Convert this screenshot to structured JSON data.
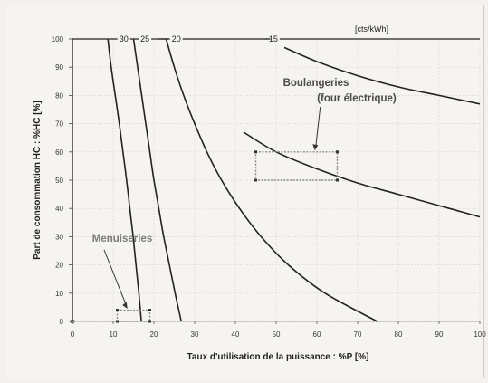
{
  "chart_data": {
    "type": "line",
    "xlabel": "Taux d'utilisation de la puissance : %P [%]",
    "ylabel": "Part de consommation HC : %HC [%]",
    "xlim": [
      0,
      100
    ],
    "ylim": [
      0,
      100
    ],
    "x_ticks": [
      "0",
      "10",
      "20",
      "30",
      "40",
      "50",
      "60",
      "70",
      "80",
      "90",
      "100"
    ],
    "y_ticks": [
      "0",
      "10",
      "20",
      "30",
      "40",
      "50",
      "60",
      "70",
      "80",
      "90",
      "100"
    ],
    "grid": true,
    "unit_label": "[cts/kWh]",
    "series": [
      {
        "name": "30",
        "points": [
          [
            8.7,
            100
          ],
          [
            9.5,
            90
          ],
          [
            10.5,
            80
          ],
          [
            11.5,
            70
          ],
          [
            12.4,
            60
          ],
          [
            13.3,
            50
          ],
          [
            14.1,
            40
          ],
          [
            14.9,
            30
          ],
          [
            15.6,
            20
          ],
          [
            16.3,
            10
          ],
          [
            16.9,
            0
          ]
        ]
      },
      {
        "name": "25",
        "points": [
          [
            15,
            100
          ],
          [
            16,
            90
          ],
          [
            17,
            80
          ],
          [
            18,
            70
          ],
          [
            19,
            60
          ],
          [
            20,
            50
          ],
          [
            21.2,
            40
          ],
          [
            22.4,
            30
          ],
          [
            23.8,
            20
          ],
          [
            25.2,
            10
          ],
          [
            26.7,
            0
          ]
        ]
      },
      {
        "name": "20",
        "points": [
          [
            23,
            100
          ],
          [
            25,
            90
          ],
          [
            27.3,
            80
          ],
          [
            30,
            70
          ],
          [
            33,
            60
          ],
          [
            36.6,
            50
          ],
          [
            41,
            40
          ],
          [
            46.3,
            30
          ],
          [
            53,
            20
          ],
          [
            62,
            10
          ],
          [
            74.8,
            0
          ]
        ]
      },
      {
        "name": "15",
        "points": [
          [
            52,
            97
          ],
          [
            60,
            92
          ],
          [
            70,
            87
          ],
          [
            80,
            83
          ],
          [
            90,
            80
          ],
          [
            100,
            77
          ]
        ]
      },
      {
        "name": "",
        "points": [
          [
            42,
            67
          ],
          [
            50,
            60
          ],
          [
            60,
            54
          ],
          [
            70,
            49
          ],
          [
            80,
            45
          ],
          [
            90,
            41
          ],
          [
            100,
            37
          ]
        ]
      }
    ],
    "annotations": [
      {
        "text": "Boulangeries",
        "rect": {
          "x": [
            45,
            65
          ],
          "y": [
            50,
            60
          ]
        }
      },
      {
        "text": "(four électrique)"
      },
      {
        "text": "Menuiseries",
        "rect": {
          "x": [
            11,
            19
          ],
          "y": [
            0,
            4
          ]
        }
      }
    ]
  }
}
